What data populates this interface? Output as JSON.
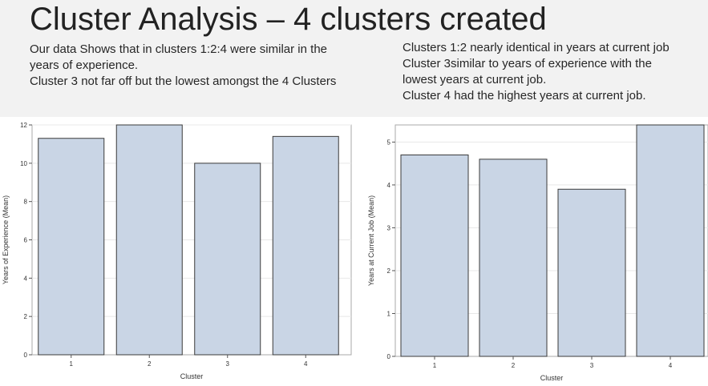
{
  "slide": {
    "title": "Cluster Analysis – 4 clusters created",
    "notes_left": [
      "Our data Shows that in clusters 1:2:4 were similar in the",
      "years of experience.",
      "Cluster 3 not far off but the lowest amongst the 4 Clusters"
    ],
    "notes_right": [
      "Clusters 1:2 nearly identical in years at current job",
      "Cluster 3similar to years of experience with the",
      "lowest years at current job.",
      "Cluster 4 had the highest years at current job."
    ]
  },
  "colors": {
    "bar_fill": "#c9d5e5",
    "bar_stroke": "#3a3a3a",
    "grid": "#e8e8e8",
    "header_bg": "#f2f2f2"
  },
  "chart_data": [
    {
      "type": "bar",
      "categories": [
        "1",
        "2",
        "3",
        "4"
      ],
      "values": [
        11.3,
        12.0,
        10.0,
        11.4
      ],
      "title": "",
      "xlabel": "Cluster",
      "ylabel": "Years of Experience (Mean)",
      "ylim": [
        0,
        12
      ],
      "yticks": [
        0,
        2,
        4,
        6,
        8,
        10,
        12
      ],
      "grid": true
    },
    {
      "type": "bar",
      "categories": [
        "1",
        "2",
        "3",
        "4"
      ],
      "values": [
        4.7,
        4.6,
        3.9,
        5.4
      ],
      "title": "",
      "xlabel": "Cluster",
      "ylabel": "Years at Current Job (Mean)",
      "ylim": [
        0,
        5.4
      ],
      "yticks": [
        0,
        1,
        2,
        3,
        4,
        5
      ],
      "grid": true
    }
  ]
}
